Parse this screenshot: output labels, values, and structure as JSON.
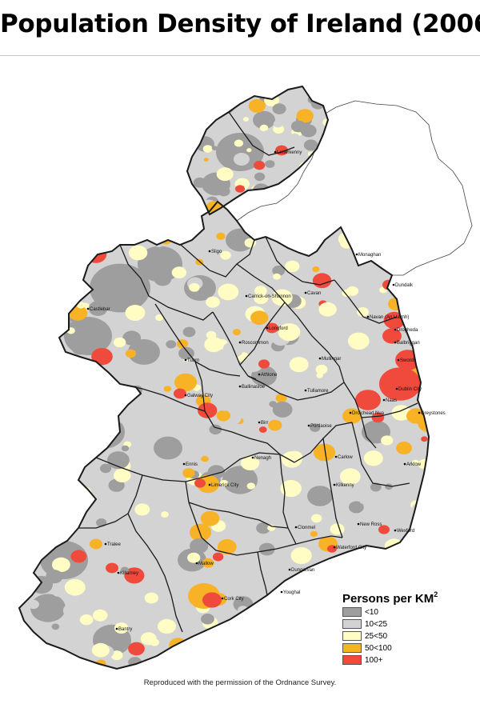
{
  "title": "Population Density of Ireland (2006)",
  "legend": {
    "title": "Persons per KM",
    "title_superscript": "2",
    "items": [
      {
        "label": "<10",
        "color": "#9e9e9e"
      },
      {
        "label": "10<25",
        "color": "#d3d3d3"
      },
      {
        "label": "25<50",
        "color": "#fffdc4"
      },
      {
        "label": "50<100",
        "color": "#f8b226"
      },
      {
        "label": "100+",
        "color": "#ef4a3c"
      }
    ]
  },
  "towns": [
    "Letterkenny",
    "Sligo",
    "Monaghan",
    "Dundalk",
    "Cavan",
    "Carrick-on-Shannon",
    "Castlebar",
    "Navan (An Uaimh)",
    "Drogheda",
    "Balbriggan",
    "Swords",
    "Tuam",
    "Roscommon",
    "Mullingar",
    "Longford",
    "Dublin City",
    "Athlone",
    "Ballinasloe",
    "Galway City",
    "Tullamore",
    "Naas",
    "Droichead Nua",
    "Greystones",
    "Portlaoise",
    "Birr",
    "Ennis",
    "Nenagh",
    "Carlow",
    "Arklow",
    "Kilkenny",
    "Limerick City",
    "Clonmel",
    "New Ross",
    "Wexford",
    "Tralee",
    "Waterford City",
    "Killarney",
    "Dungarvan",
    "Mallow",
    "Youghal",
    "Cork City",
    "Bantry"
  ],
  "credit": "Reproduced with the permission of the Ordnance Survey."
}
